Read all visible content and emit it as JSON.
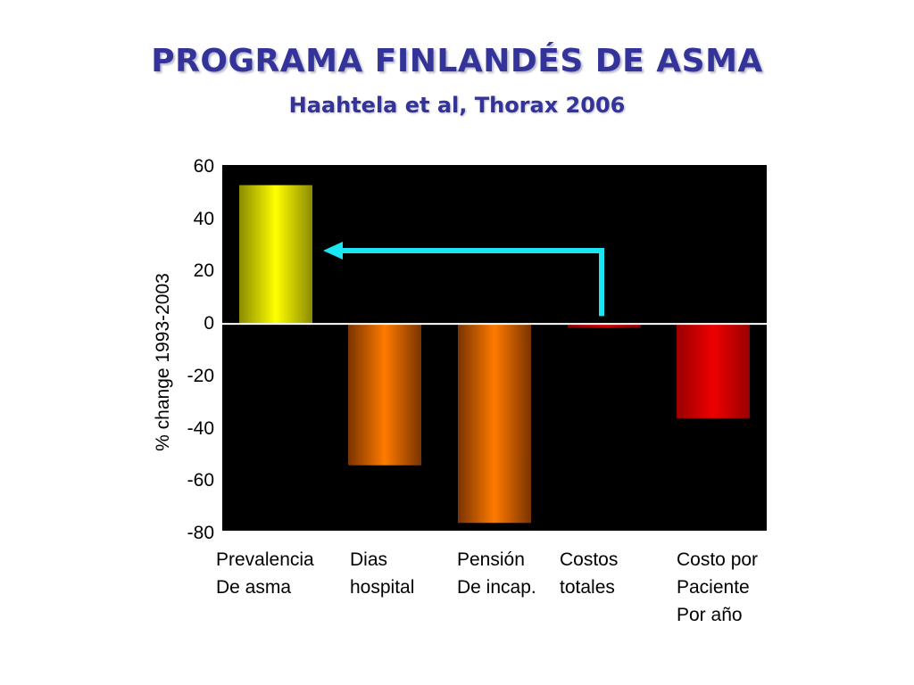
{
  "header": {
    "title": "PROGRAMA FINLANDÉS DE ASMA",
    "subtitle": "Haahtela et al, Thorax 2006"
  },
  "chart_data": {
    "type": "bar",
    "ylabel": "% change 1993-2003",
    "ylim": [
      -80,
      60
    ],
    "yticks": [
      "60",
      "40",
      "20",
      "0",
      "-20",
      "-40",
      "-60",
      "-80"
    ],
    "categories": [
      [
        "Prevalencia",
        "De asma"
      ],
      [
        "Dias",
        "hospital"
      ],
      [
        "Pensión",
        "De incap."
      ],
      [
        "Costos",
        "totales"
      ],
      [
        "Costo por",
        "Paciente",
        "Por año"
      ]
    ],
    "values": [
      53,
      -54,
      -76,
      -1.5,
      -36
    ],
    "colors": {
      "plot_background": "#000000",
      "bars": [
        "#ffff00",
        "#ff7a00",
        "#ff7a00",
        "#cc0000",
        "#ee0000"
      ],
      "bar_edges": [
        "#8a8a00",
        "#7a3300",
        "#7a3300",
        "#800000",
        "#990000"
      ],
      "arrow": "#19e6f0",
      "zero_line": "#ffffff"
    },
    "annotation": {
      "type": "arrow",
      "from_category": 3,
      "to_category": 0,
      "y_value": 28
    }
  }
}
